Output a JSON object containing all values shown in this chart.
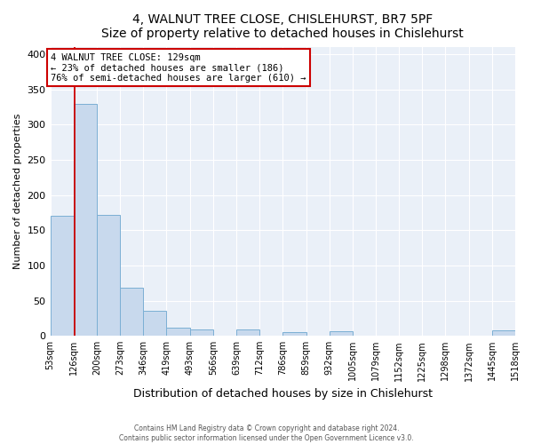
{
  "title": "4, WALNUT TREE CLOSE, CHISLEHURST, BR7 5PF",
  "subtitle": "Size of property relative to detached houses in Chislehurst",
  "xlabel": "Distribution of detached houses by size in Chislehurst",
  "ylabel": "Number of detached properties",
  "bin_edges": [
    53,
    126,
    200,
    273,
    346,
    419,
    493,
    566,
    639,
    712,
    786,
    859,
    932,
    1005,
    1079,
    1152,
    1225,
    1298,
    1372,
    1445,
    1518
  ],
  "bin_labels": [
    "53sqm",
    "126sqm",
    "200sqm",
    "273sqm",
    "346sqm",
    "419sqm",
    "493sqm",
    "566sqm",
    "639sqm",
    "712sqm",
    "786sqm",
    "859sqm",
    "932sqm",
    "1005sqm",
    "1079sqm",
    "1152sqm",
    "1225sqm",
    "1298sqm",
    "1372sqm",
    "1445sqm",
    "1518sqm"
  ],
  "bar_heights": [
    170,
    330,
    172,
    68,
    35,
    12,
    9,
    0,
    9,
    0,
    5,
    0,
    7,
    0,
    0,
    0,
    0,
    0,
    0,
    8
  ],
  "bar_color": "#c8d9ed",
  "bar_edge_color": "#7bafd4",
  "property_value": 129,
  "vline_color": "#cc0000",
  "annotation_line1": "4 WALNUT TREE CLOSE: 129sqm",
  "annotation_line2": "← 23% of detached houses are smaller (186)",
  "annotation_line3": "76% of semi-detached houses are larger (610) →",
  "annotation_box_color": "#ffffff",
  "annotation_box_edge": "#cc0000",
  "ylim": [
    0,
    410
  ],
  "yticks": [
    0,
    50,
    100,
    150,
    200,
    250,
    300,
    350,
    400
  ],
  "footer1": "Contains HM Land Registry data © Crown copyright and database right 2024.",
  "footer2": "Contains public sector information licensed under the Open Government Licence v3.0.",
  "bg_color": "#ffffff",
  "plot_bg_color": "#eaf0f8",
  "grid_color": "#ffffff"
}
